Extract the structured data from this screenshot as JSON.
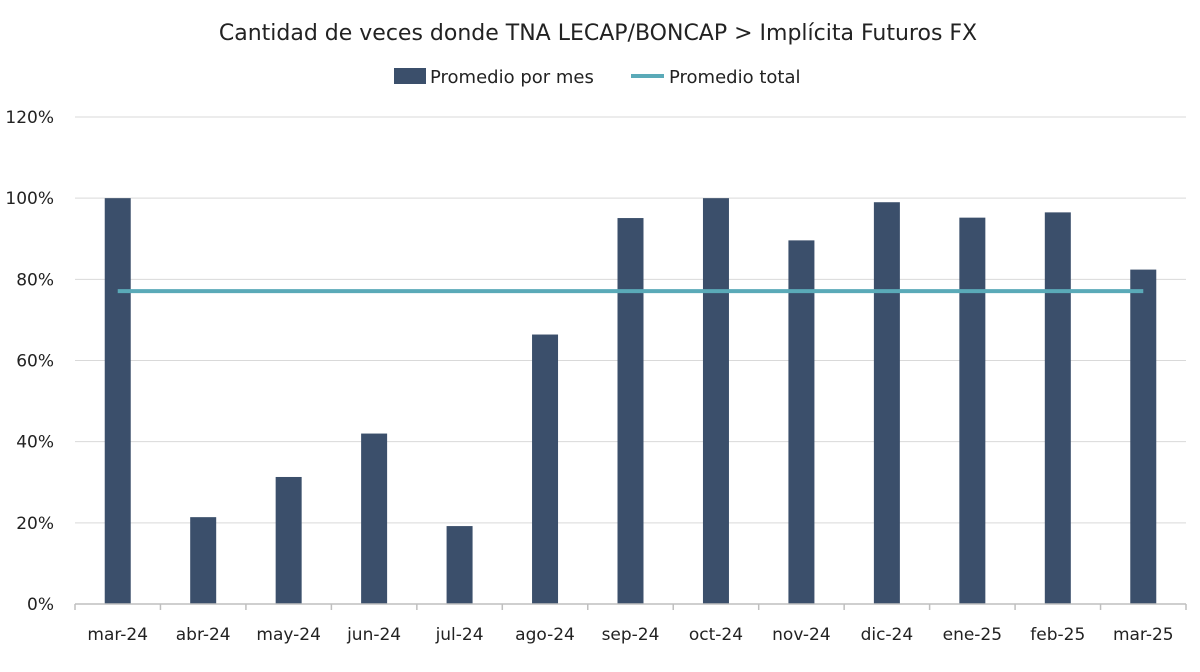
{
  "chart_data": {
    "type": "bar",
    "title": "Cantidad de veces donde TNA LECAP/BONCAP > Implícita Futuros FX",
    "xlabel": "",
    "ylabel": "",
    "categories": [
      "mar-24",
      "abr-24",
      "may-24",
      "jun-24",
      "jul-24",
      "ago-24",
      "sep-24",
      "oct-24",
      "nov-24",
      "dic-24",
      "ene-25",
      "feb-25",
      "mar-25"
    ],
    "series": [
      {
        "name": "Promedio por mes",
        "type": "bar",
        "color": "#3b4f6b",
        "values": [
          100,
          21.4,
          31.3,
          42,
          19.2,
          66.4,
          95.1,
          100,
          89.6,
          99,
          95.2,
          96.5,
          82.4
        ]
      },
      {
        "name": "Promedio total",
        "type": "line",
        "color": "#5aaab8",
        "values": [
          77.1,
          77.1,
          77.1,
          77.1,
          77.1,
          77.1,
          77.1,
          77.1,
          77.1,
          77.1,
          77.1,
          77.1,
          77.1
        ]
      }
    ],
    "ylim": [
      0,
      120
    ],
    "yticks": [
      0,
      20,
      40,
      60,
      80,
      100,
      120
    ],
    "ytick_labels": [
      "0%",
      "20%",
      "40%",
      "60%",
      "80%",
      "100%",
      "120%"
    ],
    "grid": true,
    "legend_position": "top-center"
  },
  "colors": {
    "bar": "#3b4f6b",
    "average_line": "#5aaab8",
    "grid": "#d9d9d9",
    "axis": "#bfbfbf"
  }
}
